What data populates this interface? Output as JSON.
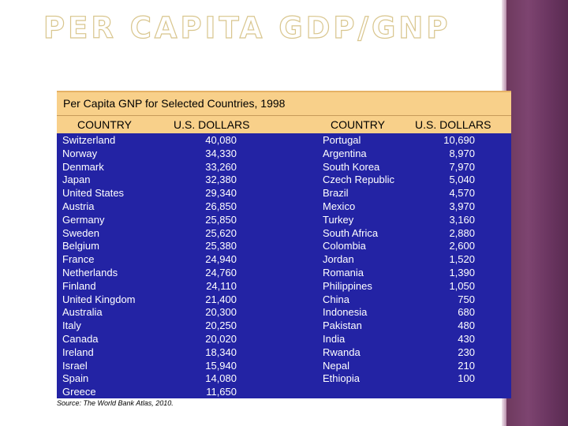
{
  "slide": {
    "title": "PER CAPITA GDP/GNP"
  },
  "table": {
    "caption": "Per Capita GNP for Selected Countries, 1998",
    "headers": {
      "country_left": "COUNTRY",
      "dollars_left": "U.S. DOLLARS",
      "country_right": "COUNTRY",
      "dollars_right": "U.S. DOLLARS"
    },
    "left": {
      "countries": [
        "Switzerland",
        "Norway",
        "Denmark",
        "Japan",
        "United States",
        "Austria",
        "Germany",
        "Sweden",
        "Belgium",
        "France",
        "Netherlands",
        "Finland",
        "United Kingdom",
        "Australia",
        "Italy",
        "Canada",
        "Ireland",
        "Israel",
        "Spain",
        "Greece"
      ],
      "values": [
        "40,080",
        "34,330",
        "33,260",
        "32,380",
        "29,340",
        "26,850",
        "25,850",
        "25,620",
        "25,380",
        "24,940",
        "24,760",
        "24,110",
        "21,400",
        "20,300",
        "20,250",
        "20,020",
        "18,340",
        "15,940",
        "14,080",
        "11,650"
      ]
    },
    "right": {
      "countries": [
        "Portugal",
        "Argentina",
        "South Korea",
        "Czech Republic",
        "Brazil",
        "Mexico",
        "Turkey",
        "South Africa",
        "Colombia",
        "Jordan",
        "Romania",
        "Philippines",
        "China",
        "Indonesia",
        "Pakistan",
        "India",
        "Rwanda",
        "Nepal",
        "Ethiopia"
      ],
      "values": [
        "10,690",
        "8,970",
        "7,970",
        "5,040",
        "4,570",
        "3,970",
        "3,160",
        "2,880",
        "2,600",
        "1,520",
        "1,390",
        "1,050",
        "750",
        "680",
        "480",
        "430",
        "230",
        "210",
        "100"
      ]
    }
  },
  "source": "Source: The World Bank Atlas, 2010."
}
